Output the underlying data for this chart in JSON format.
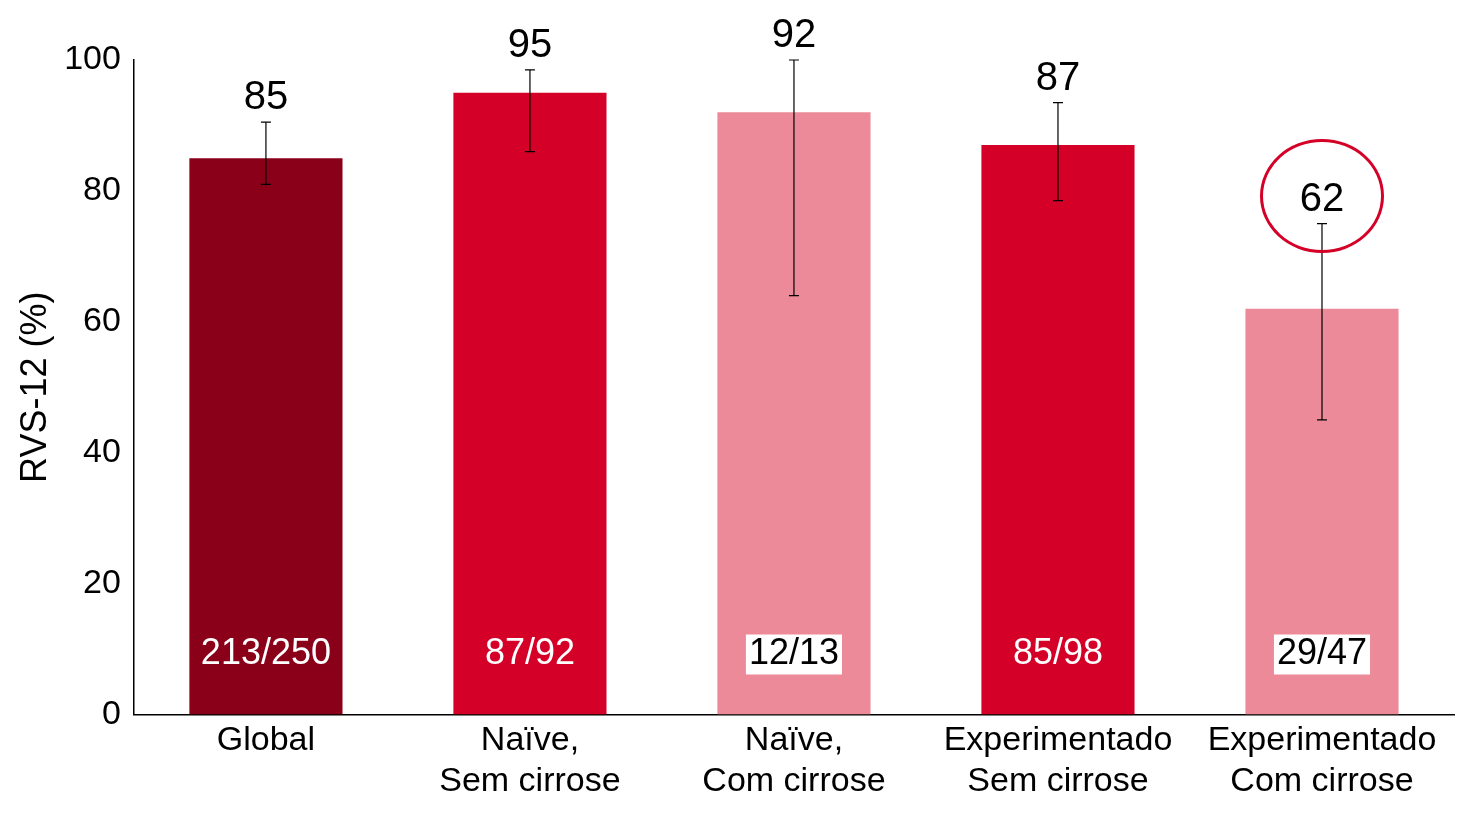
{
  "chart_data": {
    "type": "bar",
    "ylabel": "RVS-12 (%)",
    "categories": [
      "Global",
      "Naïve,\nSem cirrose",
      "Naïve,\nCom cirrose",
      "Experimentado\nSem cirrose",
      "Experimentado\nCom cirrose"
    ],
    "values": [
      85,
      95,
      92,
      87,
      62
    ],
    "colors": [
      "#8b0019",
      "#d50027",
      "#ec8a99",
      "#d50027",
      "#ec8a99"
    ],
    "errors": [
      [
        81,
        90.5
      ],
      [
        86,
        98.5
      ],
      [
        64,
        100
      ],
      [
        78.5,
        93.5
      ],
      [
        45,
        75
      ]
    ],
    "data_labels": true,
    "ylim": [
      0,
      100
    ],
    "yticks": [
      0,
      20,
      40,
      60,
      80,
      100
    ],
    "grid": false,
    "legend": false,
    "annotations": [
      "213/250",
      "87/92",
      "12/13",
      "85/98",
      "29/47"
    ]
  }
}
